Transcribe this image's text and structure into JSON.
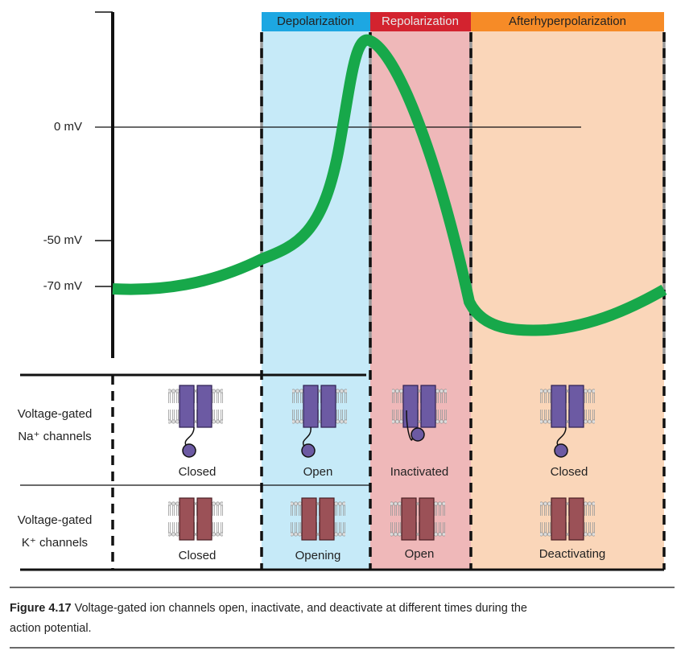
{
  "axis": {
    "labels": [
      "0 mV",
      "-50 mV",
      "-70 mV"
    ]
  },
  "phases": [
    "Depolarization",
    "Repolarization",
    "Afterhyperpolarization"
  ],
  "rows": [
    {
      "label": [
        "Voltage-gated",
        "Na⁺ channels"
      ],
      "states": [
        "Closed",
        "Open",
        "Inactivated",
        "Closed"
      ]
    },
    {
      "label": [
        "Voltage-gated",
        "K⁺ channels"
      ],
      "states": [
        "Closed",
        "Opening",
        "Open",
        "Deactivating"
      ]
    }
  ],
  "caption": {
    "label": "Figure 4.17",
    "lines": [
      "Voltage-gated ion channels open, inactivate, and deactivate at different times during the",
      "action potential."
    ]
  }
}
